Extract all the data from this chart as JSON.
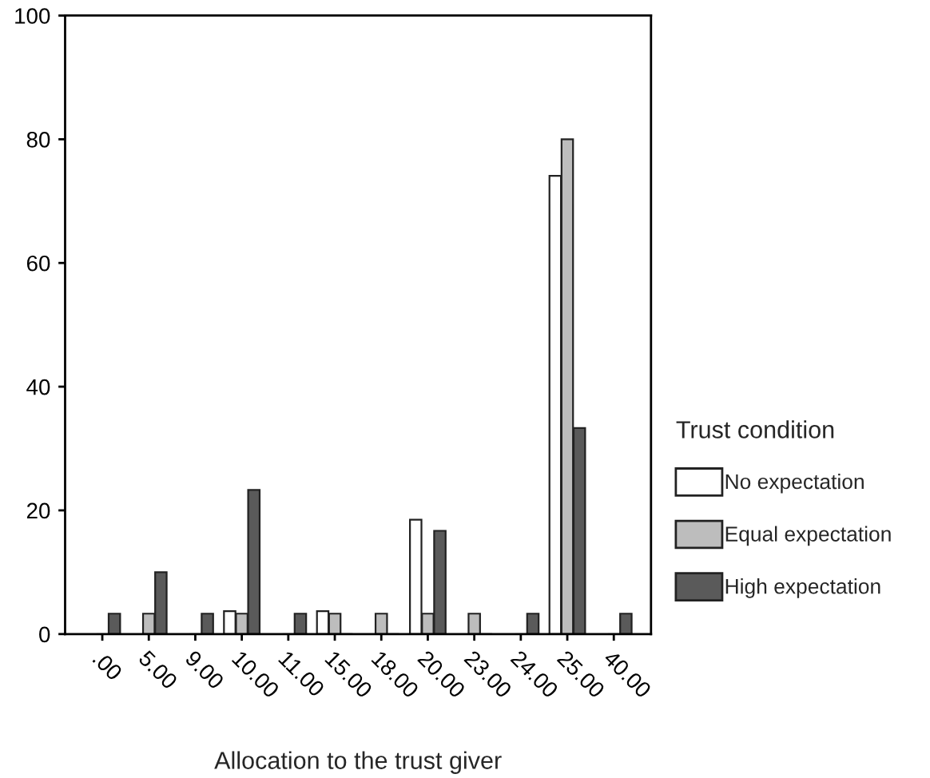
{
  "chart_data": {
    "type": "bar",
    "xlabel": "Allocation to the trust giver",
    "legend_title": "Trust condition",
    "categories": [
      ".00",
      "5.00",
      "9.00",
      "10.00",
      "11.00",
      "15.00",
      "18.00",
      "20.00",
      "23.00",
      "24.00",
      "25.00",
      "40.00"
    ],
    "series": [
      {
        "name": "No expectation",
        "color": "#ffffff",
        "values": [
          0,
          0,
          0,
          3.7,
          0,
          3.7,
          0,
          18.5,
          0,
          0,
          74.1,
          0
        ]
      },
      {
        "name": "Equal expectation",
        "color": "#bdbdbd",
        "values": [
          0,
          3.3,
          0,
          3.3,
          0,
          3.3,
          3.3,
          3.3,
          3.3,
          0,
          80,
          0
        ]
      },
      {
        "name": "High expectation",
        "color": "#5a5a5a",
        "values": [
          3.3,
          10,
          3.3,
          23.3,
          3.3,
          0,
          0,
          16.7,
          0,
          3.3,
          33.3,
          3.3
        ]
      }
    ],
    "ylim": [
      0,
      100
    ],
    "yticks": [
      0,
      20,
      40,
      60,
      80,
      100
    ],
    "grid": false,
    "legend": "right"
  }
}
